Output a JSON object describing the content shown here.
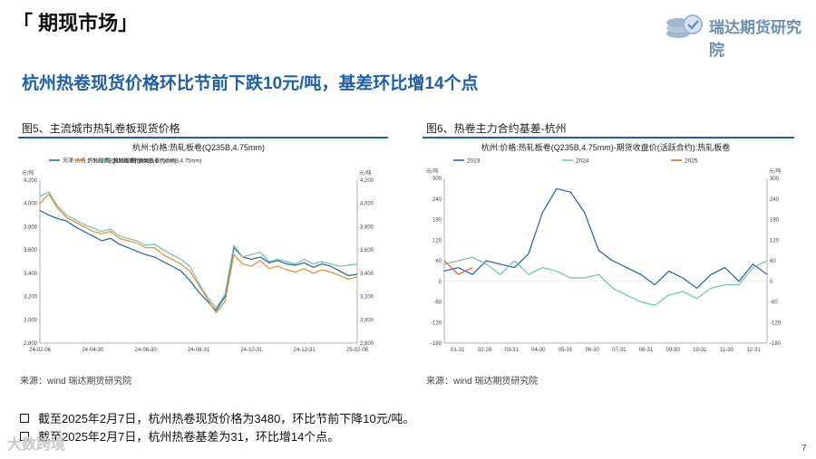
{
  "header": {
    "section_title": "「 期现市场」",
    "logo_text": "瑞达期货研究院",
    "headline": "杭州热卷现货价格环比节前下跌10元/吨，基差环比增14个点"
  },
  "figures": {
    "left": {
      "title": "图5、主流城市热轧卷板现货价格",
      "source": "来源：wind   瑞达期货研究院"
    },
    "right": {
      "title": "图6、热卷主力合约基差-杭州",
      "source": "来源：wind   瑞达期货研究院"
    }
  },
  "bullets": [
    "截至2025年2月7日，杭州热卷现货价格为3480，环比节前下降10元/吨。",
    "截至2025年2月7日，杭州热卷基差为31，环比增14个点。"
  ],
  "page_number": "7",
  "watermark": "大数跨境",
  "chart_data": [
    {
      "type": "line",
      "title": "杭州:价格:热轧板卷(Q235B,4.75mm)",
      "unit_label": "元/吨",
      "ylim": [
        2800,
        4200
      ],
      "yticks": [
        "2,800",
        "3,000",
        "3,200",
        "3,400",
        "3,600",
        "3,800",
        "4,000",
        "4,200"
      ],
      "xticks": [
        "24-02-06",
        "24-04-30",
        "24-06-30",
        "24-08-31",
        "24-10-31",
        "24-12-31",
        "25-02-06"
      ],
      "x": [
        0,
        10,
        20,
        30,
        40,
        50,
        60,
        70,
        80,
        90,
        100,
        110,
        120,
        130,
        140,
        150,
        160,
        170,
        180,
        190,
        200,
        210,
        220,
        230,
        240,
        250,
        260,
        270,
        280,
        290,
        300,
        310,
        320,
        330,
        340,
        350,
        360
      ],
      "series": [
        {
          "name": "天津:价格:热轧板卷(Q235B,4.75mm)",
          "color": "#1f5fa8",
          "values": [
            3940,
            3900,
            3870,
            3850,
            3800,
            3760,
            3720,
            3680,
            3700,
            3650,
            3620,
            3590,
            3560,
            3540,
            3500,
            3460,
            3420,
            3340,
            3240,
            3160,
            3080,
            3200,
            3620,
            3540,
            3520,
            3540,
            3490,
            3510,
            3480,
            3470,
            3490,
            3450,
            3480,
            3460,
            3420,
            3380,
            3390
          ]
        },
        {
          "name": "广州:价格:热轧板卷(Q235B,4.75mm)",
          "color": "#e38b2a",
          "values": [
            4000,
            4080,
            3960,
            3880,
            3840,
            3800,
            3760,
            3740,
            3760,
            3700,
            3680,
            3660,
            3620,
            3620,
            3560,
            3520,
            3480,
            3420,
            3300,
            3180,
            3060,
            3160,
            3560,
            3480,
            3460,
            3510,
            3440,
            3460,
            3430,
            3410,
            3440,
            3400,
            3430,
            3410,
            3380,
            3350,
            3370
          ]
        },
        {
          "name": "杭州:价格:热轧板卷(Q235B,4.75mm)",
          "color": "#6cc0b0",
          "values": [
            4060,
            4100,
            3980,
            3900,
            3860,
            3820,
            3790,
            3760,
            3780,
            3720,
            3700,
            3680,
            3640,
            3650,
            3600,
            3560,
            3520,
            3460,
            3320,
            3200,
            3100,
            3220,
            3640,
            3540,
            3560,
            3580,
            3500,
            3520,
            3500,
            3480,
            3520,
            3480,
            3500,
            3480,
            3460,
            3470,
            3480
          ]
        }
      ]
    },
    {
      "type": "line",
      "title": "杭州:价格:热轧板卷(Q235B,4.75mm)-期货收盘价(活跃合约):热轧板卷",
      "unit_label": "元/吨",
      "ylim": [
        -180,
        300
      ],
      "yticks": [
        "-180",
        "-120",
        "-60",
        "0",
        "60",
        "120",
        "180",
        "240",
        "300"
      ],
      "xticks": [
        "01-31",
        "02-28",
        "03-31",
        "04-30",
        "05-31",
        "06-30",
        "07-31",
        "08-31",
        "09-30",
        "10-31",
        "11-30",
        "12-31"
      ],
      "x": [
        0,
        0.5,
        1,
        1.5,
        2,
        2.5,
        3,
        3.5,
        4,
        4.5,
        5,
        5.5,
        6,
        6.5,
        7,
        7.5,
        8,
        8.5,
        9,
        9.5,
        10,
        10.5,
        11,
        11.5
      ],
      "series": [
        {
          "name": "2023",
          "color": "#1f5fa8",
          "values": [
            30,
            40,
            20,
            60,
            50,
            40,
            80,
            200,
            270,
            260,
            200,
            90,
            60,
            40,
            20,
            -10,
            30,
            10,
            -20,
            20,
            40,
            0,
            50,
            20
          ]
        },
        {
          "name": "2024",
          "color": "#6cc0b0",
          "values": [
            50,
            60,
            70,
            50,
            20,
            60,
            20,
            40,
            30,
            10,
            10,
            20,
            -20,
            -40,
            -60,
            -70,
            -40,
            -30,
            -50,
            -20,
            -10,
            -10,
            40,
            60
          ]
        },
        {
          "name": "2025",
          "color": "#d4622a",
          "values": [
            60,
            20,
            40,
            null,
            null,
            null,
            null,
            null,
            null,
            null,
            null,
            null,
            null,
            null,
            null,
            null,
            null,
            null,
            null,
            null,
            null,
            null,
            null,
            null
          ]
        }
      ]
    }
  ]
}
